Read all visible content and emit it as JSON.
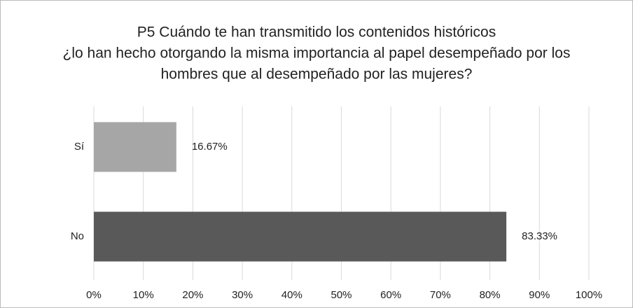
{
  "chart_data": {
    "type": "barh",
    "title": [
      "P5 Cuándo te han transmitido los contenidos históricos",
      "¿lo han hecho otorgando la misma importancia al papel desempeñado por los",
      "hombres que al desempeñado por las mujeres?"
    ],
    "categories": [
      "Sí",
      "No"
    ],
    "values": [
      16.67,
      83.33
    ],
    "value_labels": [
      "16.67%",
      "83.33%"
    ],
    "colors": [
      "#a6a6a6",
      "#595959"
    ],
    "xlim": [
      0,
      100
    ],
    "xticks": [
      {
        "value": 0,
        "label": "0%"
      },
      {
        "value": 10,
        "label": "10%"
      },
      {
        "value": 20,
        "label": "20%"
      },
      {
        "value": 30,
        "label": "30%"
      },
      {
        "value": 40,
        "label": "40%"
      },
      {
        "value": 50,
        "label": "50%"
      },
      {
        "value": 60,
        "label": "60%"
      },
      {
        "value": 70,
        "label": "70%"
      },
      {
        "value": 80,
        "label": "80%"
      },
      {
        "value": 90,
        "label": "90%"
      },
      {
        "value": 100,
        "label": "100%"
      }
    ],
    "grid": true
  }
}
